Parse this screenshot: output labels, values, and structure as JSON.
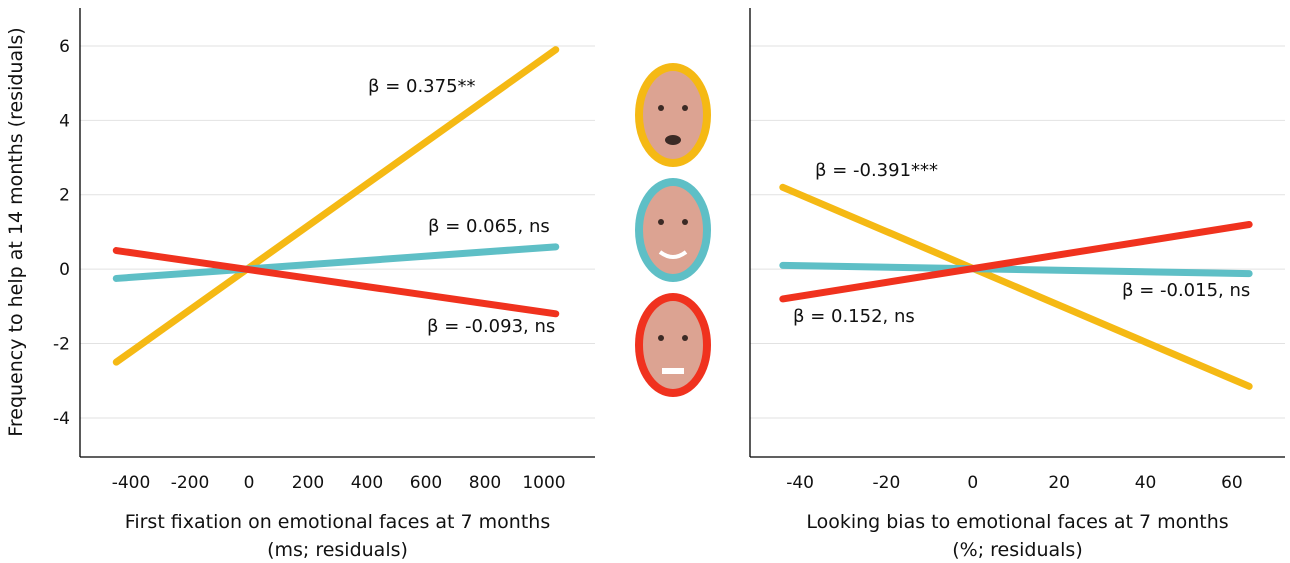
{
  "chart_data": [
    {
      "type": "line",
      "ylabel": "Frequency to help at 14 months (residuals)",
      "xlabel": [
        "First fixation on emotional faces at 7 months",
        "(ms; residuals)"
      ],
      "x": [
        -450,
        1040
      ],
      "series": [
        {
          "color": "#f5b914",
          "values": [
            -2.5,
            5.9
          ]
        },
        {
          "color": "#5ebfc6",
          "values": [
            -0.25,
            0.6
          ]
        },
        {
          "color": "#f0321e",
          "values": [
            0.5,
            -1.2
          ]
        }
      ],
      "annotations": [
        "β = 0.375**",
        "β = 0.065, ns",
        "β = -0.093, ns"
      ],
      "xlim": [
        -573,
        1173
      ],
      "ylim": [
        -5.05,
        7.02
      ],
      "xticks": [
        -400,
        -200,
        0,
        200,
        400,
        600,
        800,
        1000
      ],
      "yticks": [
        -4,
        -2,
        0,
        2,
        4,
        6
      ],
      "ytick_labels": true,
      "grid": true
    },
    {
      "type": "line",
      "xlabel": [
        "Looking bias to emotional faces at 7 months",
        "(%; residuals)"
      ],
      "x": [
        -44,
        64
      ],
      "series": [
        {
          "color": "#f5b914",
          "values": [
            2.2,
            -3.15
          ]
        },
        {
          "color": "#5ebfc6",
          "values": [
            0.1,
            -0.12
          ]
        },
        {
          "color": "#f0321e",
          "values": [
            -0.8,
            1.2
          ]
        }
      ],
      "annotations": [
        "β = -0.391***",
        "β = -0.015, ns",
        "β = 0.152, ns"
      ],
      "xlim": [
        -51.6,
        72.3
      ],
      "ylim": [
        -5.05,
        7.02
      ],
      "xticks": [
        -40,
        -20,
        0,
        20,
        40,
        60
      ],
      "yticks": [
        -4,
        -2,
        0,
        2,
        4,
        6
      ],
      "ytick_labels": false,
      "grid": true
    }
  ]
}
